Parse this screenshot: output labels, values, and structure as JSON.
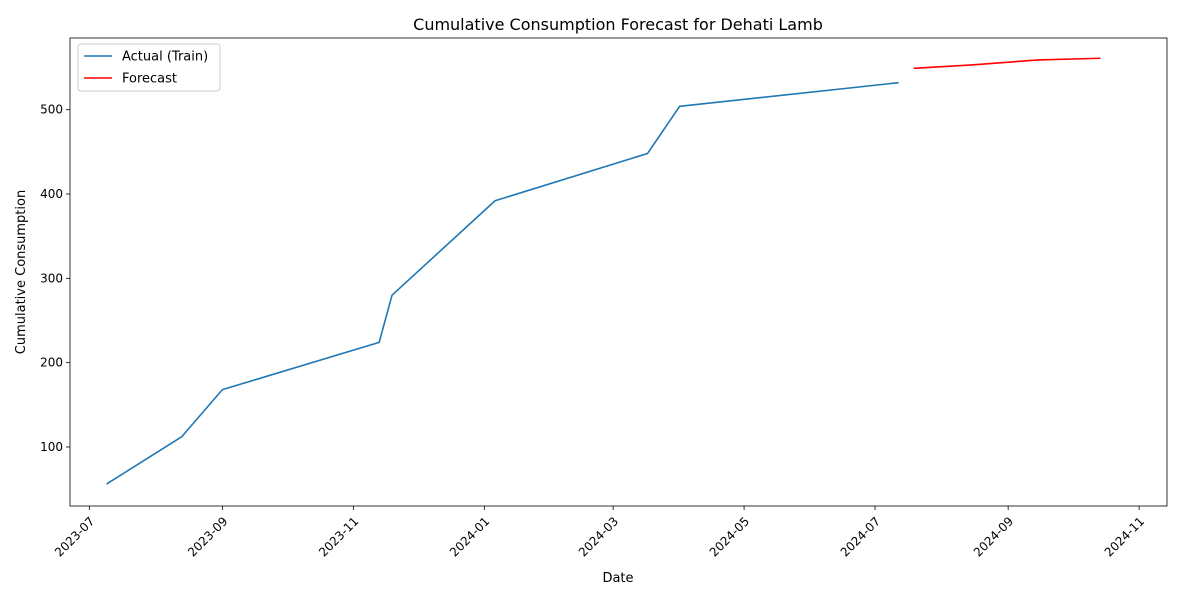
{
  "chart_data": {
    "type": "line",
    "title": "Cumulative Consumption Forecast for Dehati Lamb",
    "xlabel": "Date",
    "ylabel": "Cumulative Consumption",
    "x_ticks": [
      "2023-07",
      "2023-09",
      "2023-11",
      "2024-01",
      "2024-03",
      "2024-05",
      "2024-07",
      "2024-09",
      "2024-11"
    ],
    "y_ticks": [
      100,
      200,
      300,
      400,
      500
    ],
    "xlim": [
      "2023-06-22",
      "2024-11-14"
    ],
    "ylim": [
      30,
      585
    ],
    "grid": false,
    "legend_position": "top-left",
    "series": [
      {
        "name": "Actual (Train)",
        "color": "#1f77b4",
        "points": [
          {
            "x": "2023-07-09",
            "y": 56
          },
          {
            "x": "2023-08-13",
            "y": 112
          },
          {
            "x": "2023-09-01",
            "y": 168
          },
          {
            "x": "2023-11-13",
            "y": 224
          },
          {
            "x": "2023-11-19",
            "y": 280
          },
          {
            "x": "2024-01-06",
            "y": 392
          },
          {
            "x": "2024-03-17",
            "y": 448
          },
          {
            "x": "2024-04-01",
            "y": 504
          },
          {
            "x": "2024-07-12",
            "y": 532
          }
        ]
      },
      {
        "name": "Forecast",
        "color": "#ff0000",
        "points": [
          {
            "x": "2024-07-19",
            "y": 549
          },
          {
            "x": "2024-08-15",
            "y": 553
          },
          {
            "x": "2024-09-15",
            "y": 559
          },
          {
            "x": "2024-10-14",
            "y": 561
          }
        ]
      }
    ]
  }
}
